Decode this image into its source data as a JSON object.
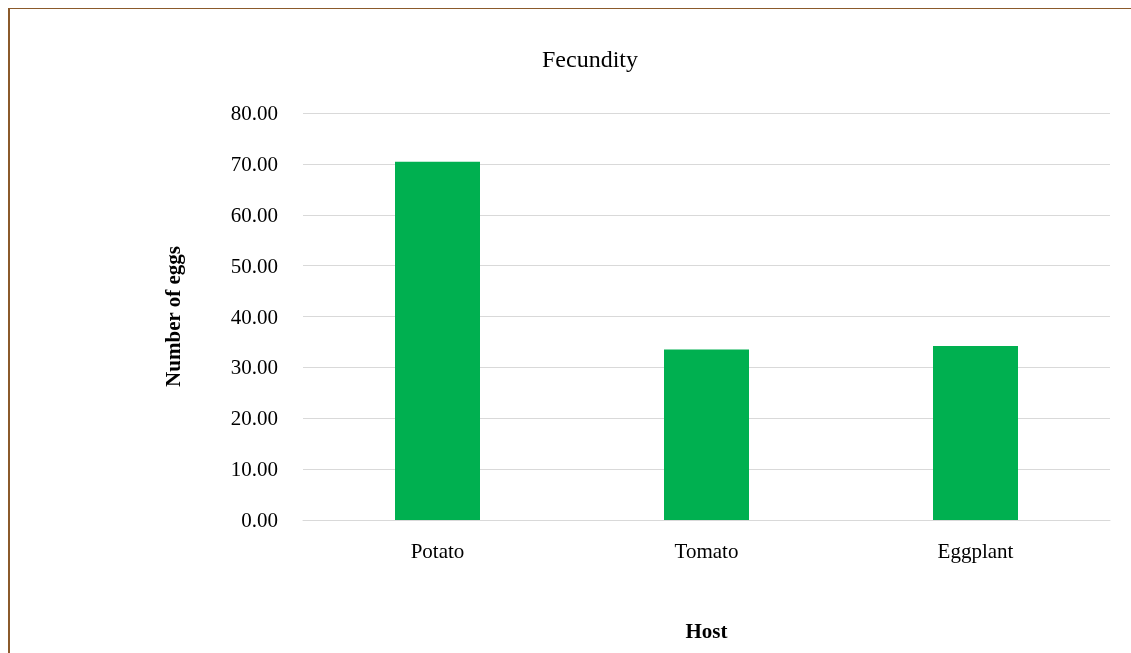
{
  "chart_data": {
    "type": "bar",
    "title": "Fecundity",
    "xlabel": "Host",
    "ylabel": "Number of eggs",
    "categories": [
      "Potato",
      "Tomato",
      "Eggplant"
    ],
    "values": [
      70.4,
      33.5,
      34.2
    ],
    "color": "#00b050",
    "ylim": [
      0,
      80
    ],
    "yticks": [
      {
        "value": 0,
        "label": "0.00"
      },
      {
        "value": 10,
        "label": "10.00"
      },
      {
        "value": 20,
        "label": "20.00"
      },
      {
        "value": 30,
        "label": "30.00"
      },
      {
        "value": 40,
        "label": "40.00"
      },
      {
        "value": 50,
        "label": "50.00"
      },
      {
        "value": 60,
        "label": "60.00"
      },
      {
        "value": 70,
        "label": "70.00"
      },
      {
        "value": 80,
        "label": "80.00"
      }
    ],
    "grid": "y"
  }
}
